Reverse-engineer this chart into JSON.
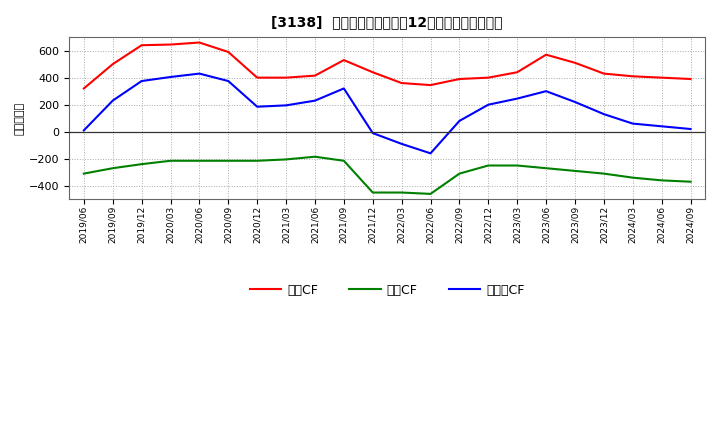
{
  "title": "[3138]  キャッシュフローの12か月移動合計の推移",
  "ylabel": "（百万円）",
  "x_labels": [
    "2019/06",
    "2019/09",
    "2019/12",
    "2020/03",
    "2020/06",
    "2020/09",
    "2020/12",
    "2021/03",
    "2021/06",
    "2021/09",
    "2021/12",
    "2022/03",
    "2022/06",
    "2022/09",
    "2022/12",
    "2023/03",
    "2023/06",
    "2023/09",
    "2023/12",
    "2024/03",
    "2024/06",
    "2024/09"
  ],
  "operating_cf": [
    320,
    500,
    640,
    645,
    660,
    590,
    400,
    400,
    415,
    530,
    440,
    360,
    345,
    390,
    400,
    440,
    570,
    510,
    430,
    410,
    400,
    390
  ],
  "investing_cf": [
    -310,
    -270,
    -240,
    -215,
    -215,
    -215,
    -215,
    -205,
    -185,
    -215,
    -450,
    -450,
    -460,
    -310,
    -250,
    -250,
    -270,
    -290,
    -310,
    -340,
    -360,
    -370
  ],
  "free_cf": [
    10,
    230,
    375,
    405,
    430,
    375,
    185,
    195,
    230,
    320,
    -10,
    -90,
    -160,
    80,
    200,
    245,
    300,
    220,
    130,
    60,
    40,
    20
  ],
  "operating_color": "#ff0000",
  "investing_color": "#008000",
  "free_color": "#0000ff",
  "bg_color": "#ffffff",
  "plot_bg_color": "#ffffff",
  "grid_color": "#aaaaaa",
  "ylim": [
    -500,
    700
  ],
  "yticks": [
    -400,
    -200,
    0,
    200,
    400,
    600
  ],
  "legend_labels": [
    "営業CF",
    "投資CF",
    "フリーCF"
  ]
}
